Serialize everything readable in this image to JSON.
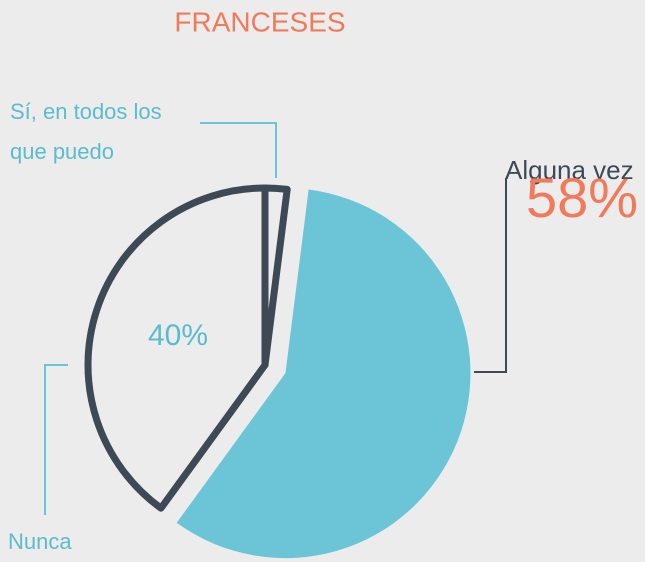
{
  "chart_data": {
    "type": "pie",
    "title": "FRANCESES",
    "categories": [
      "Sí, en todos los que puedo",
      "Alguna vez",
      "Nunca"
    ],
    "values": [
      2,
      58,
      40
    ],
    "value_labels": [
      null,
      "58%",
      "40%"
    ],
    "colors": [
      "#ececec",
      "#6cc5d6",
      "#ececec"
    ]
  }
}
